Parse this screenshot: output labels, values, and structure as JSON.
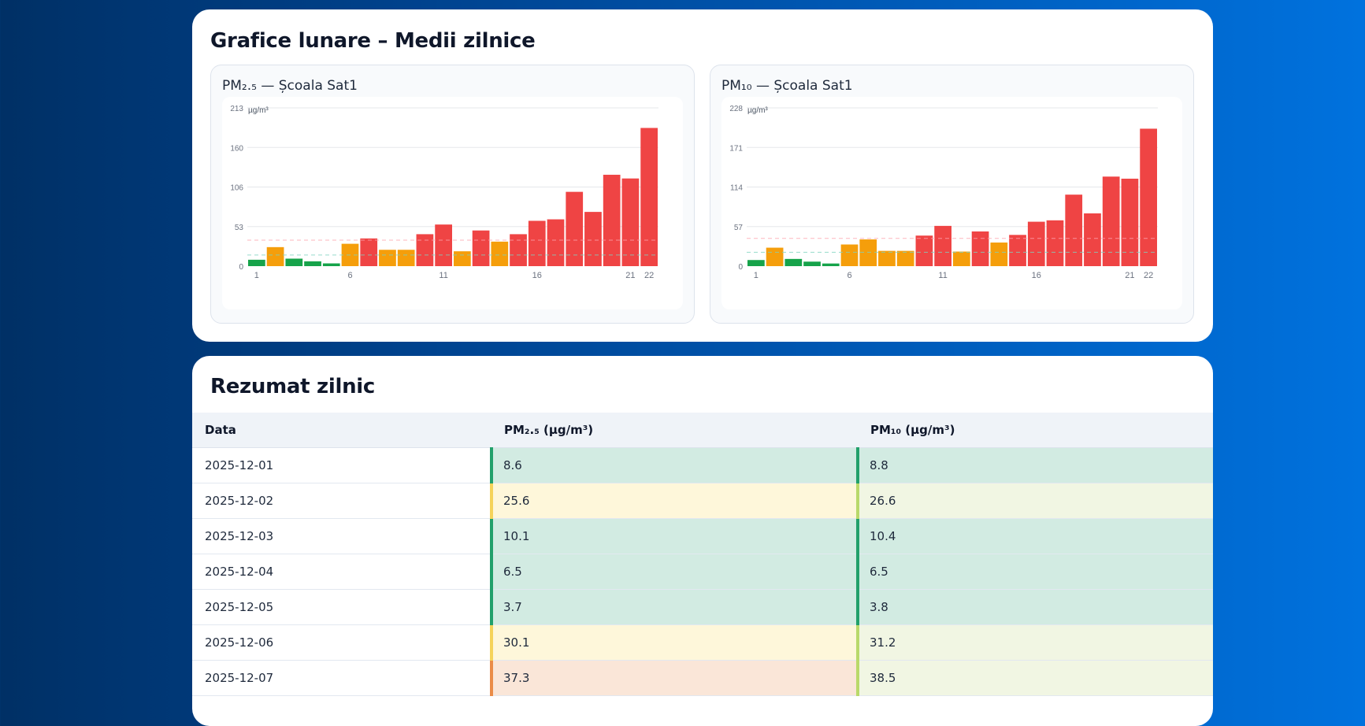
{
  "charts_section": {
    "title": "Grafice lunare – Medii zilnice",
    "panels": [
      {
        "title": "PM₂.₅ — Școala Sat1",
        "unit": "µg/m³",
        "chart_data": {
          "type": "bar",
          "title": "PM₂.₅ — Școala Sat1",
          "ylabel": "µg/m³",
          "ylim": [
            0,
            213
          ],
          "yticks": [
            "0",
            "53",
            "106",
            "160",
            "213"
          ],
          "xticks": [
            "1",
            "6",
            "11",
            "16",
            "21",
            "22"
          ],
          "categories": [
            "1",
            "2",
            "3",
            "4",
            "5",
            "6",
            "7",
            "8",
            "9",
            "10",
            "11",
            "12",
            "13",
            "14",
            "15",
            "16",
            "17",
            "18",
            "19",
            "20",
            "21",
            "22"
          ],
          "values": [
            8.6,
            25.6,
            10.1,
            6.5,
            3.7,
            30.1,
            37.3,
            22,
            22,
            43,
            56,
            20,
            48,
            33,
            43,
            61,
            63,
            100,
            73,
            123,
            118,
            186
          ],
          "reference_lines": [
            15,
            35
          ],
          "reference_colors": [
            "#7dd3c0",
            "#fda4af"
          ],
          "grid": true
        }
      },
      {
        "title": "PM₁₀ — Școala Sat1",
        "unit": "µg/m³",
        "chart_data": {
          "type": "bar",
          "title": "PM₁₀ — Școala Sat1",
          "ylabel": "µg/m³",
          "ylim": [
            0,
            228
          ],
          "yticks": [
            "0",
            "57",
            "114",
            "171",
            "228"
          ],
          "xticks": [
            "1",
            "6",
            "11",
            "16",
            "21",
            "22"
          ],
          "categories": [
            "1",
            "2",
            "3",
            "4",
            "5",
            "6",
            "7",
            "8",
            "9",
            "10",
            "11",
            "12",
            "13",
            "14",
            "15",
            "16",
            "17",
            "18",
            "19",
            "20",
            "21",
            "22"
          ],
          "values": [
            8.8,
            26.6,
            10.4,
            6.5,
            3.8,
            31.2,
            38.5,
            22,
            22,
            44,
            58,
            21,
            50,
            34,
            45,
            64,
            66,
            103,
            76,
            129,
            126,
            198
          ],
          "reference_lines": [
            20,
            40
          ],
          "reference_colors": [
            "#7dd3c0",
            "#fda4af"
          ],
          "grid": true
        }
      }
    ],
    "level_colors": {
      "good": "#16a34a",
      "moderate": "#f59e0b",
      "high": "#ef4444"
    }
  },
  "summary": {
    "title": "Rezumat zilnic",
    "columns": [
      "Data",
      "PM₂.₅ (µg/m³)",
      "PM₁₀ (µg/m³)"
    ],
    "rows": [
      {
        "date": "2025-12-01",
        "pm25": "8.6",
        "pm25_level": "good",
        "pm10": "8.8",
        "pm10_level": "good"
      },
      {
        "date": "2025-12-02",
        "pm25": "25.6",
        "pm25_level": "fair",
        "pm10": "26.6",
        "pm10_level": "moderate"
      },
      {
        "date": "2025-12-03",
        "pm25": "10.1",
        "pm25_level": "good",
        "pm10": "10.4",
        "pm10_level": "good"
      },
      {
        "date": "2025-12-04",
        "pm25": "6.5",
        "pm25_level": "good",
        "pm10": "6.5",
        "pm10_level": "good"
      },
      {
        "date": "2025-12-05",
        "pm25": "3.7",
        "pm25_level": "good",
        "pm10": "3.8",
        "pm10_level": "good"
      },
      {
        "date": "2025-12-06",
        "pm25": "30.1",
        "pm25_level": "fair",
        "pm10": "31.2",
        "pm10_level": "moderate"
      },
      {
        "date": "2025-12-07",
        "pm25": "37.3",
        "pm25_level": "poor",
        "pm10": "38.5",
        "pm10_level": "moderate"
      }
    ]
  }
}
